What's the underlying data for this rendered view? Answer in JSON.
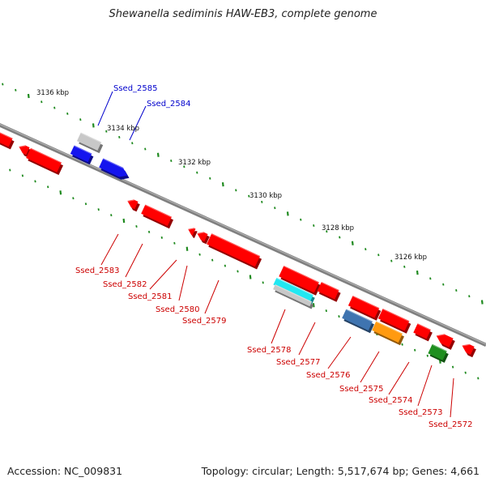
{
  "title": "Shewanella sediminis HAW-EB3, complete genome",
  "footer": {
    "accession": "Accession: NC_009831",
    "summary": "Topology: circular; Length: 5,517,674 bp; Genes: 4,661"
  },
  "colors": {
    "backbone": "#808080",
    "tick": "#1f8a1f",
    "label_top": "#0000cc",
    "label_bottom": "#cc0000",
    "gene_red": "#ff0000",
    "gene_blue": "#1515ee",
    "gene_grey": "#c8c8c8",
    "gene_cyan": "#22e8f2",
    "gene_steel": "#3f74b0",
    "gene_orange": "#ff9a10",
    "gene_green": "#1f8f1f"
  },
  "scale_labels": [
    "3136 kbp",
    "3134 kbp",
    "3132 kbp",
    "3130 kbp",
    "3128 kbp",
    "3126 kbp"
  ],
  "gene_labels_top": [
    "Ssed_2585",
    "Ssed_2584"
  ],
  "gene_labels_bottom": [
    "Ssed_2583",
    "Ssed_2582",
    "Ssed_2581",
    "Ssed_2580",
    "Ssed_2579",
    "Ssed_2578",
    "Ssed_2577",
    "Ssed_2576",
    "Ssed_2575",
    "Ssed_2574",
    "Ssed_2573",
    "Ssed_2572"
  ]
}
